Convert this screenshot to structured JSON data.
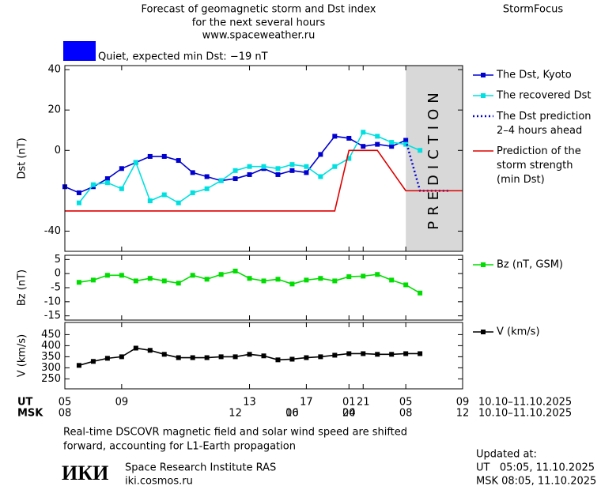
{
  "header": {
    "title": [
      "Forecast of geomagnetic storm and Dst index",
      "for the next several hours",
      "www.spaceweather.ru"
    ],
    "brand": "StormFocus"
  },
  "status": {
    "text": "Quiet, expected min Dst: −19 nT",
    "color": "#0000ff"
  },
  "chart_data": [
    {
      "type": "line",
      "ylabel": "Dst (nT)",
      "ylim": [
        -50,
        42
      ],
      "yticks": [
        -40,
        0,
        20,
        40
      ],
      "xlim": [
        0,
        28
      ],
      "prediction_band": {
        "label": "PREDICTION",
        "xlim": [
          24,
          28
        ],
        "color": "#d8d8d8"
      },
      "series": [
        {
          "name": "The Dst, Kyoto",
          "color": "#0000d0",
          "marker": "square",
          "dash": false,
          "x": [
            0,
            1,
            2,
            3,
            4,
            5,
            6,
            7,
            8,
            9,
            10,
            11,
            12,
            13,
            14,
            15,
            16,
            17,
            18,
            19,
            20,
            21,
            22,
            23,
            24
          ],
          "values": [
            -18,
            -21,
            -18,
            -14,
            -9,
            -6,
            -3,
            -3,
            -5,
            -11,
            -13,
            -15,
            -14,
            -12,
            -9,
            -12,
            -10,
            -11,
            -2,
            7,
            6,
            2,
            3,
            2,
            5
          ]
        },
        {
          "name": "The recovered Dst",
          "color": "#00e0e0",
          "marker": "square",
          "dash": false,
          "x": [
            1,
            2,
            3,
            4,
            5,
            6,
            7,
            8,
            9,
            10,
            11,
            12,
            13,
            14,
            15,
            16,
            17,
            18,
            19,
            20,
            21,
            22,
            23,
            24,
            25
          ],
          "values": [
            -26,
            -17,
            -16,
            -19,
            -6,
            -25,
            -22,
            -26,
            -21,
            -19,
            -15,
            -10,
            -8,
            -8,
            -9,
            -7,
            -8,
            -13,
            -8,
            -4,
            9,
            7,
            4,
            3,
            0
          ]
        },
        {
          "name": "The Dst prediction\n2–4 hours ahead",
          "color": "#0000d0",
          "marker": "none",
          "dash": true,
          "x": [
            24,
            25,
            27
          ],
          "values": [
            5,
            -20,
            -20
          ]
        },
        {
          "name": "Prediction of the\nstorm strength\n(min Dst)",
          "color": "#dd0000",
          "marker": "none",
          "dash": false,
          "x": [
            0,
            19,
            20,
            22,
            24,
            28
          ],
          "values": [
            -30,
            -30,
            0,
            0,
            -20,
            -20
          ]
        }
      ]
    },
    {
      "type": "line",
      "ylabel": "Bz (nT)",
      "ylim": [
        -16.5,
        6.5
      ],
      "yticks": [
        -15,
        -10,
        -5,
        0,
        5
      ],
      "xlim": [
        0,
        28
      ],
      "series": [
        {
          "name": "Bz (nT, GSM)",
          "color": "#00dd00",
          "marker": "square",
          "dash": false,
          "x": [
            1,
            2,
            3,
            4,
            5,
            6,
            7,
            8,
            9,
            10,
            11,
            12,
            13,
            14,
            15,
            16,
            17,
            18,
            19,
            20,
            21,
            22,
            23,
            24,
            25
          ],
          "values": [
            -3.1,
            -2.3,
            -0.6,
            -0.6,
            -2.6,
            -1.7,
            -2.6,
            -3.4,
            -0.6,
            -2,
            -0.3,
            0.9,
            -1.7,
            -2.6,
            -2,
            -3.7,
            -2.3,
            -1.7,
            -2.6,
            -1.1,
            -0.9,
            -0.3,
            -2.3,
            -4,
            -6.9
          ]
        }
      ]
    },
    {
      "type": "line",
      "ylabel": "V (km/s)",
      "ylim": [
        205,
        505
      ],
      "yticks": [
        250,
        300,
        350,
        400,
        450
      ],
      "xlim": [
        0,
        28
      ],
      "xlabel": "UT",
      "x2label": "MSK",
      "xrange_text": "10.10–11.10.2025",
      "x2range_text": "10.10–11.10.2025",
      "xticks": [
        {
          "value": 0,
          "label": "05"
        },
        {
          "value": 4,
          "label": "09"
        },
        13,
        17,
        21,
        {
          "value": 20,
          "label": "01"
        },
        {
          "value": 24,
          "label": "05"
        },
        {
          "value": 28,
          "label": "09"
        }
      ],
      "x2ticks": [
        {
          "value": 0,
          "label": "08"
        },
        12,
        16,
        20,
        {
          "value": 16,
          "label": "00"
        },
        {
          "value": 20,
          "label": "04"
        },
        {
          "value": 24,
          "label": "08"
        },
        {
          "value": 28,
          "label": "12"
        }
      ],
      "series": [
        {
          "name": "V (km/s)",
          "color": "#000000",
          "marker": "square",
          "dash": false,
          "x": [
            1,
            2,
            3,
            4,
            5,
            6,
            7,
            8,
            9,
            10,
            11,
            12,
            13,
            14,
            15,
            16,
            17,
            18,
            19,
            20,
            21,
            22,
            23,
            24,
            25
          ],
          "values": [
            311,
            329,
            343,
            350,
            389,
            379,
            361,
            346,
            346,
            346,
            350,
            350,
            361,
            354,
            336,
            339,
            346,
            350,
            357,
            364,
            364,
            361,
            361,
            364,
            364
          ]
        }
      ]
    }
  ],
  "footer": {
    "note": [
      "Real-time DSCOVR magnetic field and solar wind speed are shifted",
      "forward, accounting for L1-Earth propagation"
    ],
    "logo": "ИКИ",
    "institute": "Space Research Institute RAS",
    "site": "iki.cosmos.ru",
    "updated": [
      "Updated at:",
      "UT   05:05, 11.10.2025",
      "MSK 08:05, 11.10.2025"
    ]
  }
}
